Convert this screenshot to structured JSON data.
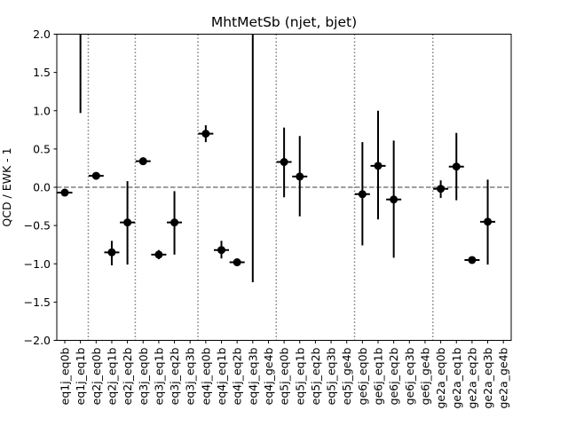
{
  "chart_data": {
    "type": "scatter",
    "title": "MhtMetSb (njet, bjet)",
    "xlabel": "",
    "ylabel": "QCD / EWK - 1",
    "ylim": [
      -2.0,
      2.0
    ],
    "yticks": [
      -2.0,
      -1.5,
      -1.0,
      -0.5,
      0.0,
      0.5,
      1.0,
      1.5,
      2.0
    ],
    "ytick_labels": [
      "−2.0",
      "−1.5",
      "−1.0",
      "−0.5",
      "0.0",
      "0.5",
      "1.0",
      "1.5",
      "2.0"
    ],
    "grid": false,
    "legend": "none",
    "categories": [
      "eq1j_eq0b",
      "eq1j_eq1b",
      "eq2j_eq0b",
      "eq2j_eq1b",
      "eq2j_eq2b",
      "eq3j_eq0b",
      "eq3j_eq1b",
      "eq3j_eq2b",
      "eq3j_eq3b",
      "eq4j_eq0b",
      "eq4j_eq1b",
      "eq4j_eq2b",
      "eq4j_eq3b",
      "eq4j_ge4b",
      "eq5j_eq0b",
      "eq5j_eq1b",
      "eq5j_eq2b",
      "eq5j_eq3b",
      "eq5j_ge4b",
      "ge6j_eq0b",
      "ge6j_eq1b",
      "ge6j_eq2b",
      "ge6j_eq3b",
      "ge6j_ge4b",
      "ge2a_eq0b",
      "ge2a_eq1b",
      "ge2a_eq2b",
      "ge2a_eq3b",
      "ge2a_ge4b"
    ],
    "series": [
      {
        "values": [
          -0.07,
          null,
          0.15,
          -0.85,
          -0.46,
          0.34,
          -0.88,
          -0.46,
          null,
          0.7,
          -0.82,
          -0.98,
          null,
          null,
          0.33,
          0.14,
          null,
          null,
          null,
          -0.09,
          0.28,
          -0.16,
          null,
          null,
          -0.02,
          0.27,
          -0.95,
          -0.45,
          null
        ],
        "err_low": [
          0.04,
          null,
          0.04,
          0.17,
          0.55,
          0.04,
          0.06,
          0.42,
          null,
          0.11,
          0.11,
          0.04,
          null,
          null,
          0.46,
          0.52,
          null,
          null,
          null,
          0.67,
          0.7,
          0.76,
          null,
          null,
          0.12,
          0.44,
          0.04,
          0.56,
          null
        ],
        "err_high": [
          0.04,
          null,
          0.04,
          0.15,
          0.54,
          0.04,
          0.06,
          0.41,
          null,
          0.11,
          0.12,
          0.04,
          null,
          null,
          0.45,
          0.53,
          null,
          null,
          null,
          0.68,
          0.72,
          0.77,
          null,
          null,
          0.11,
          0.44,
          0.04,
          0.55,
          null
        ],
        "vertical_segments": [
          {
            "category": "eq1j_eq1b",
            "from": 0.97,
            "to": 2.0
          },
          {
            "category": "eq4j_eq3b",
            "from": -1.24,
            "to": 2.0
          }
        ]
      }
    ],
    "reference_line": {
      "y": 0.0,
      "style": "dashed",
      "color": "#7f7f7f"
    },
    "group_separators_after": [
      "eq1j_eq1b",
      "eq2j_eq2b",
      "eq3j_eq3b",
      "eq4j_ge4b",
      "eq5j_ge4b",
      "ge6j_ge4b"
    ],
    "colors": {
      "points": "#000000",
      "separators": "#7f7f7f"
    }
  }
}
